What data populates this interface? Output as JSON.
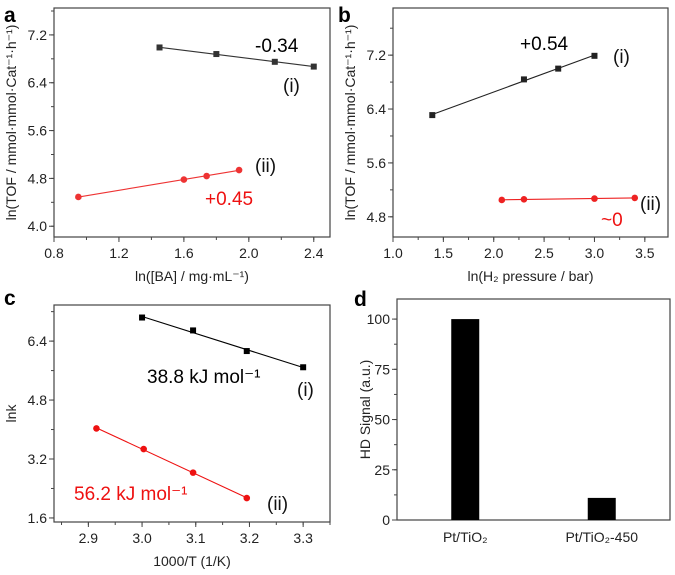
{
  "chart_data": [
    {
      "panel": "a",
      "type": "scatter",
      "xlabel": "ln([BA] / mg·mL⁻¹)",
      "ylabel": "ln(TOF / mmol·mmol·Cat⁻¹·h⁻¹)",
      "xlim": [
        0.8,
        2.5
      ],
      "ylim": [
        3.82,
        7.65
      ],
      "xticks": [
        "0.8",
        "1.2",
        "1.6",
        "2.0",
        "2.4"
      ],
      "yticks": [
        "4.0",
        "4.8",
        "5.6",
        "6.4",
        "7.2"
      ],
      "series": [
        {
          "name": "(i)",
          "color": "#333333",
          "marker": "square",
          "x": [
            1.45,
            1.8,
            2.16,
            2.4
          ],
          "y": [
            6.99,
            6.88,
            6.75,
            6.67
          ],
          "slope_label": "-0.34"
        },
        {
          "name": "(ii)",
          "color": "#ee3333",
          "marker": "circle",
          "x": [
            0.95,
            1.6,
            1.74,
            1.94
          ],
          "y": [
            4.49,
            4.78,
            4.84,
            4.94
          ],
          "slope_label": "+0.45"
        }
      ]
    },
    {
      "panel": "b",
      "type": "scatter",
      "xlabel": "ln(H₂ pressure / bar)",
      "ylabel": "ln(TOF / mmol·mmol·Cat⁻¹·h⁻¹)",
      "xlim": [
        1.0,
        3.73
      ],
      "ylim": [
        4.5,
        7.9
      ],
      "xticks": [
        "1.0",
        "1.5",
        "2.0",
        "2.5",
        "3.0",
        "3.5"
      ],
      "yticks": [
        "4.8",
        "5.6",
        "6.4",
        "7.2"
      ],
      "series": [
        {
          "name": "(i)",
          "color": "#222222",
          "marker": "square",
          "x": [
            1.39,
            2.3,
            2.64,
            3.0
          ],
          "y": [
            6.31,
            6.84,
            7.0,
            7.19
          ],
          "slope_label": "+0.54"
        },
        {
          "name": "(ii)",
          "color": "#ee2222",
          "marker": "circle",
          "x": [
            2.08,
            2.3,
            3.0,
            3.4
          ],
          "y": [
            5.05,
            5.06,
            5.07,
            5.08
          ],
          "slope_label": "~0"
        }
      ]
    },
    {
      "panel": "c",
      "type": "scatter",
      "xlabel": "1000/T (1/K)",
      "ylabel": "lnk",
      "xlim": [
        2.836,
        3.35
      ],
      "ylim": [
        1.49,
        7.38
      ],
      "xticks": [
        "2.9",
        "3.0",
        "3.1",
        "3.2",
        "3.3"
      ],
      "yticks": [
        "1.6",
        "3.2",
        "4.8",
        "6.4"
      ],
      "series": [
        {
          "name": "(i)",
          "color": "#000000",
          "marker": "square",
          "x": [
            3.0,
            3.095,
            3.195,
            3.3
          ],
          "y": [
            7.04,
            6.69,
            6.13,
            5.69
          ],
          "slope_label": "38.8 kJ mol⁻¹"
        },
        {
          "name": "(ii)",
          "color": "#ee1111",
          "marker": "circle",
          "x": [
            2.915,
            3.003,
            3.095,
            3.195
          ],
          "y": [
            4.03,
            3.47,
            2.83,
            2.14
          ],
          "slope_label": "56.2 kJ mol⁻¹"
        }
      ]
    },
    {
      "panel": "d",
      "type": "bar",
      "ylabel": "HD Signal (a.u.)",
      "categories": [
        "Pt/TiO₂",
        "Pt/TiO₂-450"
      ],
      "values": [
        100,
        11
      ],
      "ylim": [
        0,
        110
      ],
      "yticks": [
        "0",
        "25",
        "50",
        "75",
        "100"
      ],
      "color": "#000000"
    }
  ]
}
